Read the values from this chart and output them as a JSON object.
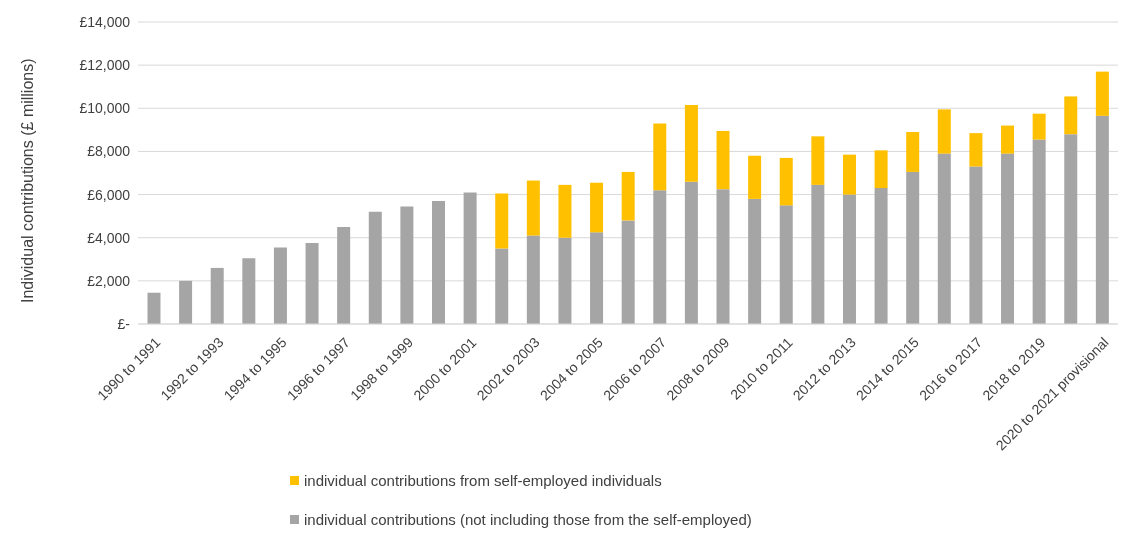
{
  "chart_data": {
    "type": "bar",
    "stacked": true,
    "ylabel": "Individual contributions (£ millions)",
    "categories": [
      "1990 to 1991",
      null,
      "1992 to 1993",
      null,
      "1994 to 1995",
      null,
      "1996 to 1997",
      null,
      "1998 to 1999",
      null,
      "2000 to 2001",
      null,
      "2002 to 2003",
      null,
      "2004 to 2005",
      null,
      "2006 to 2007",
      null,
      "2008 to 2009",
      null,
      "2010 to 2011",
      null,
      "2012 to 2013",
      null,
      "2014 to 2015",
      null,
      "2016 to 2017",
      null,
      "2018 to 2019",
      null,
      "2020 to 2021 provisional"
    ],
    "series": [
      {
        "name": "individual contributions (not including those from the self-employed)",
        "color": "#a5a5a5",
        "values": [
          1450,
          2000,
          2600,
          3050,
          3550,
          3750,
          4500,
          5200,
          5450,
          5700,
          6100,
          3500,
          4100,
          4000,
          4250,
          4800,
          6200,
          6600,
          6250,
          5800,
          5500,
          6450,
          6000,
          6300,
          7050,
          7900,
          7300,
          7900,
          8550,
          8800,
          9650
        ]
      },
      {
        "name": "individual contributions from self-employed individuals",
        "color": "#ffc000",
        "values": [
          null,
          null,
          null,
          null,
          null,
          null,
          null,
          null,
          null,
          null,
          null,
          2550,
          2550,
          2450,
          2300,
          2250,
          3100,
          3550,
          2700,
          2000,
          2200,
          2250,
          1850,
          1750,
          1850,
          2050,
          1550,
          1300,
          1200,
          1750,
          2050
        ]
      }
    ],
    "ylim": [
      0,
      14000
    ],
    "yticks": [
      {
        "value": 0,
        "label": "£-"
      },
      {
        "value": 2000,
        "label": "£2,000"
      },
      {
        "value": 4000,
        "label": "£4,000"
      },
      {
        "value": 6000,
        "label": "£6,000"
      },
      {
        "value": 8000,
        "label": "£8,000"
      },
      {
        "value": 10000,
        "label": "£10,000"
      },
      {
        "value": 12000,
        "label": "£12,000"
      },
      {
        "value": 14000,
        "label": "£14,000"
      }
    ],
    "grid": "y",
    "legend": "bottom"
  }
}
